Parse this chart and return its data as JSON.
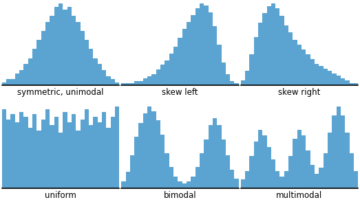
{
  "bar_color": "#5ba3d0",
  "background_color": "#ffffff",
  "text_color": "#000000",
  "font_size": 8.5,
  "histograms": {
    "symmetric_unimodal": {
      "label": "symmetric, unimodal",
      "bars": [
        1,
        2,
        2,
        4,
        5,
        7,
        9,
        12,
        15,
        18,
        21,
        23,
        26,
        27,
        25,
        26,
        23,
        21,
        18,
        15,
        12,
        9,
        7,
        5,
        3,
        2,
        1
      ]
    },
    "skew_left": {
      "label": "skew left",
      "bars": [
        1,
        1,
        1,
        2,
        2,
        3,
        4,
        5,
        7,
        9,
        11,
        14,
        17,
        21,
        25,
        28,
        31,
        34,
        36,
        35,
        32,
        26,
        18,
        10,
        5,
        2,
        1
      ]
    },
    "skew_right": {
      "label": "skew right",
      "bars": [
        2,
        6,
        13,
        20,
        26,
        30,
        33,
        34,
        32,
        29,
        25,
        22,
        19,
        17,
        15,
        13,
        11,
        9,
        8,
        7,
        6,
        5,
        4,
        3,
        2,
        1,
        1
      ]
    },
    "uniform": {
      "label": "uniform",
      "bars": [
        30,
        26,
        28,
        25,
        29,
        27,
        23,
        28,
        22,
        26,
        30,
        24,
        27,
        21,
        29,
        25,
        28,
        22,
        26,
        30,
        24,
        27,
        25,
        29,
        23,
        27,
        31
      ]
    },
    "bimodal": {
      "label": "bimodal",
      "bars": [
        3,
        7,
        14,
        22,
        28,
        32,
        35,
        33,
        29,
        23,
        15,
        9,
        5,
        3,
        2,
        3,
        5,
        9,
        15,
        21,
        27,
        30,
        27,
        21,
        14,
        8,
        4
      ]
    },
    "multimodal": {
      "label": "multimodal",
      "bars": [
        3,
        6,
        11,
        16,
        20,
        18,
        14,
        10,
        6,
        4,
        6,
        11,
        17,
        20,
        18,
        13,
        8,
        5,
        7,
        12,
        19,
        25,
        28,
        25,
        19,
        12,
        6
      ]
    }
  },
  "order": [
    "symmetric_unimodal",
    "skew_left",
    "skew_right",
    "uniform",
    "bimodal",
    "multimodal"
  ]
}
